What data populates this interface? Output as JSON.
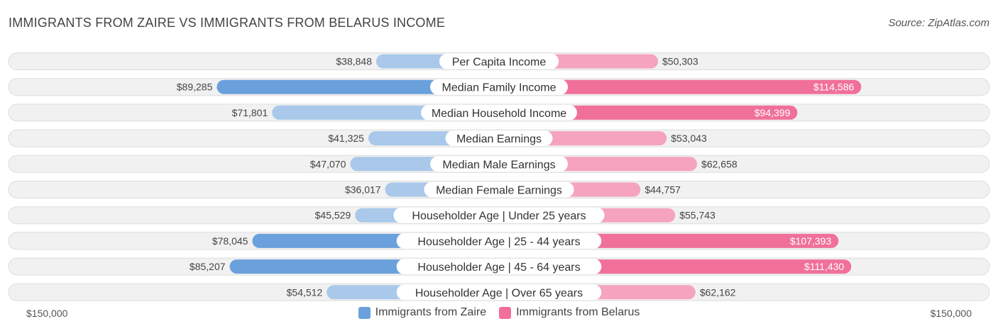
{
  "header": {
    "title": "IMMIGRANTS FROM ZAIRE VS IMMIGRANTS FROM BELARUS INCOME",
    "source": "Source: ZipAtlas.com"
  },
  "axis": {
    "left_label": "$150,000",
    "right_label": "$150,000"
  },
  "legend": {
    "left": "Immigrants from Zaire",
    "right": "Immigrants from Belarus"
  },
  "colors": {
    "left_strong": "#6aa1dc",
    "left_light": "#a9c8ea",
    "right_strong": "#f07099",
    "right_light": "#f5a3bf",
    "row_bg": "#f1f1f1",
    "row_border": "#dddddd"
  },
  "chart_data": {
    "type": "bar",
    "orientation": "horizontal-diverging",
    "max": 150000,
    "categories": [
      "Per Capita Income",
      "Median Family Income",
      "Median Household Income",
      "Median Earnings",
      "Median Male Earnings",
      "Median Female Earnings",
      "Householder Age | Under 25 years",
      "Householder Age | 25 - 44 years",
      "Householder Age | 45 - 64 years",
      "Householder Age | Over 65 years"
    ],
    "series": [
      {
        "name": "Immigrants from Zaire",
        "values": [
          38848,
          89285,
          71801,
          41325,
          47070,
          36017,
          45529,
          78045,
          85207,
          54512
        ],
        "labels": [
          "$38,848",
          "$89,285",
          "$71,801",
          "$41,325",
          "$47,070",
          "$36,017",
          "$45,529",
          "$78,045",
          "$85,207",
          "$54,512"
        ]
      },
      {
        "name": "Immigrants from Belarus",
        "values": [
          50303,
          114586,
          94399,
          53043,
          62658,
          44757,
          55743,
          107393,
          111430,
          62162
        ],
        "labels": [
          "$50,303",
          "$114,586",
          "$94,399",
          "$53,043",
          "$62,658",
          "$44,757",
          "$55,743",
          "$107,393",
          "$111,430",
          "$62,162"
        ]
      }
    ]
  }
}
